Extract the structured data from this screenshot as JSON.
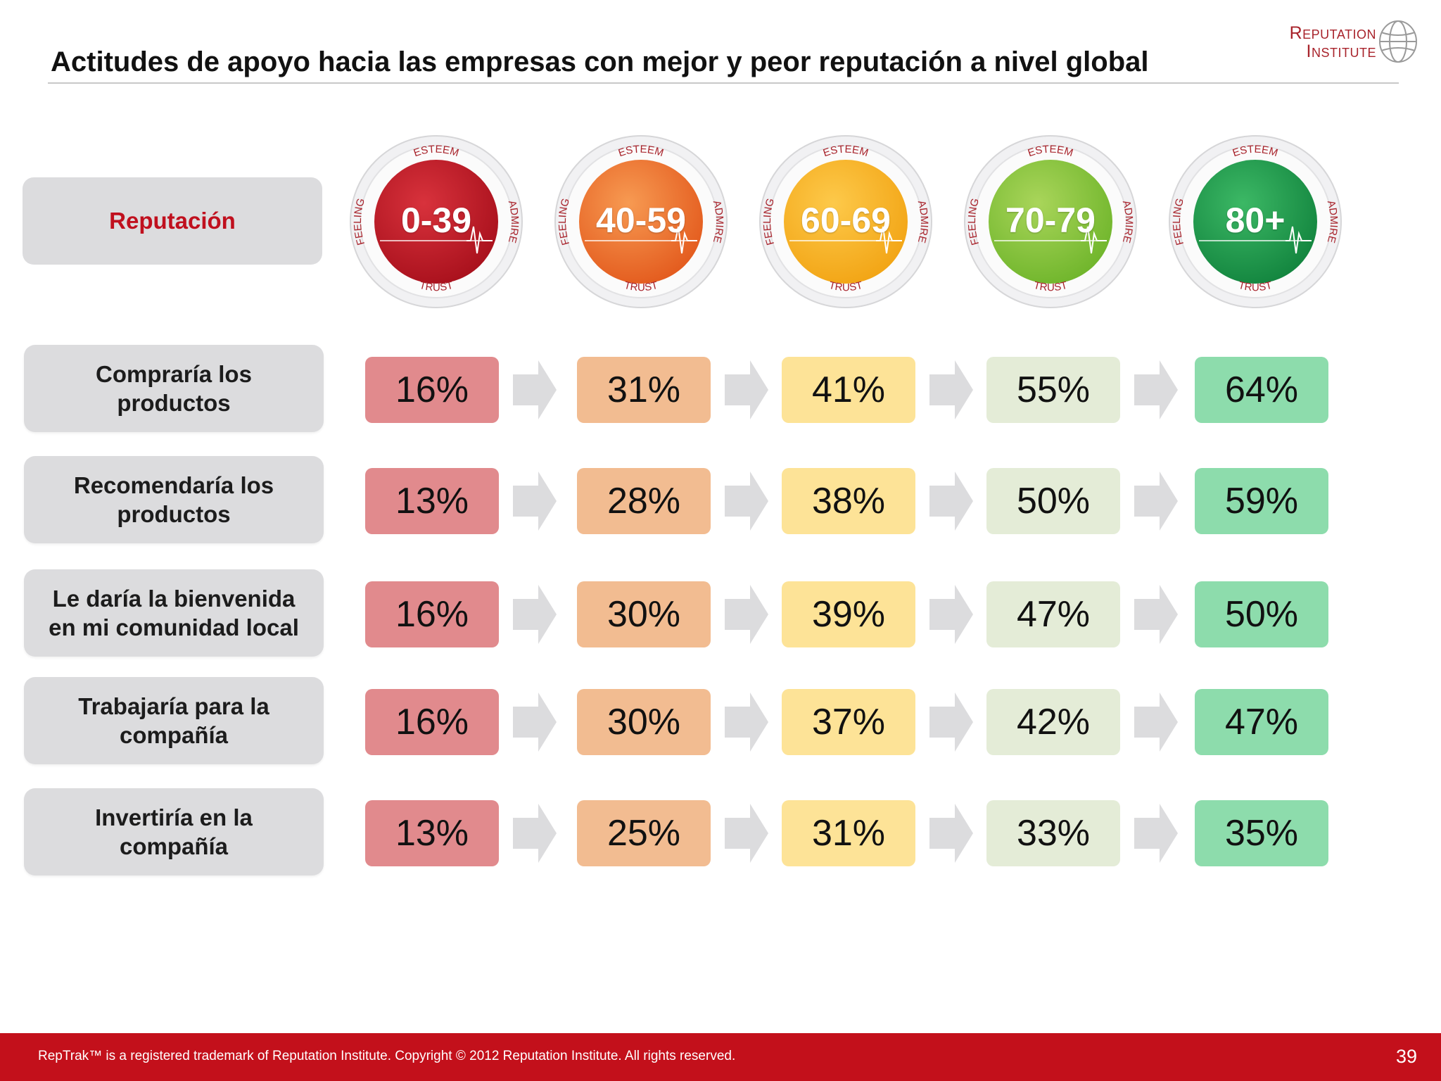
{
  "title": "Actitudes de apoyo hacia las empresas con mejor y peor reputación a nivel global",
  "logo": {
    "line1": "Reputation",
    "line2": "Institute"
  },
  "reputation_label": "Reputación",
  "gauge_ring_labels": {
    "top": "ESTEEM",
    "bottom": "TRUST",
    "left": "FEELING",
    "right": "ADMIRE"
  },
  "bands": [
    {
      "label": "0-39",
      "color_light": "#d8323c",
      "color_dark": "#a8101c"
    },
    {
      "label": "40-59",
      "color_light": "#f79a52",
      "color_dark": "#e35a1d"
    },
    {
      "label": "60-69",
      "color_light": "#fdc94a",
      "color_dark": "#f2a414"
    },
    {
      "label": "70-79",
      "color_light": "#a9d55a",
      "color_dark": "#6fb52b"
    },
    {
      "label": "80+",
      "color_light": "#3cb865",
      "color_dark": "#12843e"
    }
  ],
  "cell_colors": [
    "#e18a8d",
    "#f2bc91",
    "#fde397",
    "#e4ecd7",
    "#8ddcac"
  ],
  "rows": [
    {
      "label_lines": [
        "Compraría los",
        "productos"
      ],
      "values": [
        "16%",
        "31%",
        "41%",
        "55%",
        "64%"
      ]
    },
    {
      "label_lines": [
        "Recomendaría los",
        "productos"
      ],
      "values": [
        "13%",
        "28%",
        "38%",
        "50%",
        "59%"
      ]
    },
    {
      "label_lines": [
        "Le daría la bienvenida",
        "en mi comunidad local"
      ],
      "values": [
        "16%",
        "30%",
        "39%",
        "47%",
        "50%"
      ]
    },
    {
      "label_lines": [
        "Trabajaría para la",
        "compañía"
      ],
      "values": [
        "16%",
        "30%",
        "37%",
        "42%",
        "47%"
      ]
    },
    {
      "label_lines": [
        "Invertiría en la",
        "compañía"
      ],
      "values": [
        "13%",
        "25%",
        "31%",
        "33%",
        "35%"
      ]
    }
  ],
  "footer": {
    "text": "RepTrak™ is a registered trademark of Reputation Institute. Copyright © 2012 Reputation Institute. All rights reserved.",
    "page_number": "39"
  }
}
